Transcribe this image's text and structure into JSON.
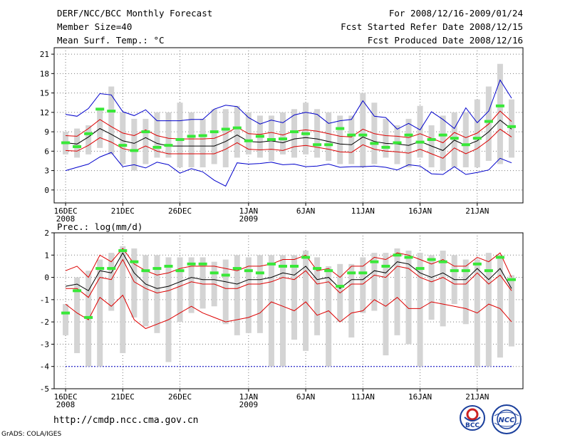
{
  "header": {
    "title": "DERF/NCC/BCC Monthly Forecast",
    "member_size": "Member Size=40",
    "forecast_range": "For 2008/12/16-2009/01/24",
    "fcst_started": "Fcst Started Refer Date 2008/12/15",
    "fcst_produced": "Fcst Produced Date 2008/12/16"
  },
  "footer": {
    "url": "http://cmdp.ncc.cma.gov.cn",
    "credit": "GrADS: COLA/IGES"
  },
  "logos": {
    "bcc": "BCC",
    "ncc": "NCC"
  },
  "colors": {
    "bar": "#d4d4d4",
    "green": "#38e838",
    "blue": "#0000cc",
    "red": "#dd0000",
    "mean": "#000000",
    "grid": "#7a7a7a"
  },
  "chart_data": [
    {
      "type": "line",
      "title": "Mean Surf. Temp.: °C",
      "x_ticks": [
        {
          "day": 1,
          "label": "16DEC",
          "sub": "2008"
        },
        {
          "day": 6,
          "label": "21DEC",
          "sub": ""
        },
        {
          "day": 11,
          "label": "26DEC",
          "sub": ""
        },
        {
          "day": 17,
          "label": "1JAN",
          "sub": "2009"
        },
        {
          "day": 22,
          "label": "6JAN",
          "sub": ""
        },
        {
          "day": 27,
          "label": "11JAN",
          "sub": ""
        },
        {
          "day": 32,
          "label": "16JAN",
          "sub": ""
        },
        {
          "day": 37,
          "label": "21JAN",
          "sub": ""
        }
      ],
      "xlim": [
        0,
        41
      ],
      "y_ticks": [
        0,
        3,
        6,
        9,
        12,
        15,
        18,
        21
      ],
      "ylim": [
        -2,
        22
      ],
      "days": [
        1,
        2,
        3,
        4,
        5,
        6,
        7,
        8,
        9,
        10,
        11,
        12,
        13,
        14,
        15,
        16,
        17,
        18,
        19,
        20,
        21,
        22,
        23,
        24,
        25,
        26,
        27,
        28,
        29,
        30,
        31,
        32,
        33,
        34,
        35,
        36,
        37,
        38,
        39,
        40
      ],
      "bar_low": [
        5.5,
        5,
        5.5,
        6.5,
        5.5,
        4,
        3,
        4,
        5,
        5,
        3.5,
        3.5,
        3.5,
        4,
        3.5,
        5,
        5.5,
        5,
        4.5,
        5.5,
        5,
        5.5,
        5,
        4.5,
        4,
        4,
        3.5,
        4,
        5,
        4,
        3.5,
        5,
        3.5,
        3,
        3.5,
        3.5,
        3.5,
        4.5,
        4,
        5
      ],
      "bar_high": [
        9,
        9.5,
        10,
        12.5,
        16,
        12,
        11,
        11,
        12,
        12,
        13.5,
        12,
        11,
        12.5,
        12.5,
        13,
        12,
        11.5,
        11.5,
        12,
        12.5,
        13.5,
        12.5,
        12,
        11.5,
        11.5,
        15,
        13.5,
        11,
        10,
        11,
        13,
        10,
        11.5,
        12,
        12,
        14,
        16,
        19.5,
        14
      ],
      "green": [
        7.3,
        6.7,
        8.7,
        12.5,
        12.2,
        6.9,
        6.1,
        9,
        6.6,
        6.9,
        7.8,
        8.3,
        8.4,
        9,
        9.4,
        9.6,
        7.6,
        8.3,
        7.8,
        7.9,
        9,
        8.7,
        7,
        7,
        9.5,
        8.5,
        8.5,
        7.2,
        6.6,
        7.3,
        8.5,
        7.4,
        7.8,
        8.5,
        8,
        7,
        8,
        10.6,
        13,
        9.8
      ],
      "mean": [
        7.3,
        7.1,
        8.2,
        9.5,
        8.6,
        7.6,
        7.2,
        8.1,
        7.2,
        6.8,
        6.8,
        6.8,
        6.8,
        6.8,
        7.5,
        8.5,
        7.5,
        7.4,
        7.6,
        7.3,
        7.9,
        8.1,
        7.9,
        7.5,
        7.1,
        7,
        8.2,
        7.5,
        7.2,
        7.1,
        6.9,
        7.5,
        6.8,
        6.1,
        7.7,
        6.9,
        7.6,
        9,
        10.8,
        9.4
      ],
      "upper": [
        8.4,
        8.3,
        9.5,
        10.9,
        9.8,
        8.8,
        8.4,
        9.3,
        8.4,
        8,
        7.9,
        7.9,
        7.9,
        8,
        8.7,
        9.7,
        8.7,
        8.6,
        8.9,
        8.5,
        9.1,
        9.3,
        9.1,
        8.7,
        8.3,
        8.2,
        9.4,
        8.7,
        8.4,
        8.3,
        8.1,
        8.7,
        8,
        7.3,
        8.9,
        8.1,
        8.8,
        10.2,
        12.2,
        10.6
      ],
      "lower": [
        6.1,
        6,
        6.9,
        8.1,
        7.4,
        6.4,
        6,
        6.8,
        6,
        5.6,
        5.6,
        5.6,
        5.6,
        5.6,
        6.3,
        7.3,
        6.3,
        6.2,
        6.3,
        6.1,
        6.7,
        6.9,
        6.6,
        6.3,
        5.9,
        5.8,
        7,
        6.3,
        6,
        5.9,
        5.7,
        6.3,
        5.6,
        4.9,
        6.5,
        5.6,
        6.4,
        7.7,
        9.4,
        8.2
      ],
      "max": [
        11.7,
        11.4,
        12.6,
        14.9,
        14.7,
        12.1,
        11.5,
        12.4,
        10.7,
        10.7,
        10.7,
        10.9,
        10.9,
        12.5,
        13.1,
        12.9,
        11.2,
        10.2,
        10.8,
        10.4,
        11.6,
        12,
        11.7,
        10.3,
        10.7,
        10.9,
        13.8,
        11.4,
        11.2,
        9.4,
        10.3,
        9.3,
        12.1,
        10.9,
        9.5,
        12.7,
        10.4,
        12.2,
        17,
        14.2
      ],
      "min": [
        3,
        3.5,
        4,
        5.1,
        5.8,
        3.6,
        3.9,
        3.4,
        4.3,
        3.9,
        2.6,
        3.3,
        2.8,
        1.5,
        0.6,
        4.2,
        4,
        4.1,
        4.3,
        3.9,
        4,
        3.6,
        3.7,
        4,
        3.5,
        3.6,
        3.6,
        3.7,
        3.5,
        3.1,
        3.9,
        3.7,
        2.5,
        2.4,
        3.6,
        2.4,
        2.7,
        3.1,
        4.9,
        4.2
      ]
    },
    {
      "type": "line",
      "title": "Prec.: log(mm/d)",
      "x_ticks": [
        {
          "day": 1,
          "label": "16DEC",
          "sub": "2008"
        },
        {
          "day": 6,
          "label": "21DEC",
          "sub": ""
        },
        {
          "day": 11,
          "label": "26DEC",
          "sub": ""
        },
        {
          "day": 17,
          "label": "1JAN",
          "sub": "2009"
        },
        {
          "day": 22,
          "label": "6JAN",
          "sub": ""
        },
        {
          "day": 27,
          "label": "11JAN",
          "sub": ""
        },
        {
          "day": 32,
          "label": "16JAN",
          "sub": ""
        },
        {
          "day": 37,
          "label": "21JAN",
          "sub": ""
        }
      ],
      "xlim": [
        0,
        41
      ],
      "y_ticks": [
        -5,
        -4,
        -3,
        -2,
        -1,
        0,
        1,
        2
      ],
      "ylim": [
        -5,
        2
      ],
      "baseline": -4,
      "days": [
        1,
        2,
        3,
        4,
        5,
        6,
        7,
        8,
        9,
        10,
        11,
        12,
        13,
        14,
        15,
        16,
        17,
        18,
        19,
        20,
        21,
        22,
        23,
        24,
        25,
        26,
        27,
        28,
        29,
        30,
        31,
        32,
        33,
        34,
        35,
        36,
        37,
        38,
        39,
        40
      ],
      "bar_low": [
        -2.6,
        -3.4,
        -4,
        -4,
        -1.5,
        -3.4,
        -1.8,
        -2.2,
        -2.5,
        -3.8,
        -2,
        -1.6,
        -1.4,
        -1.3,
        -2.1,
        -2.6,
        -2.5,
        -2.5,
        -4,
        -4,
        -2.8,
        -3.3,
        -2.6,
        -4,
        -2,
        -2.7,
        -1.6,
        -1.5,
        -3.5,
        -2.6,
        -3,
        -4,
        -1.9,
        -2.2,
        -1.2,
        -2.1,
        -4,
        -4,
        -3.6,
        -3.1
      ],
      "bar_high": [
        -1.2,
        0,
        0.3,
        0.8,
        1.1,
        1.4,
        1.3,
        1,
        1,
        0.9,
        0.9,
        0.9,
        0.9,
        0.7,
        0.8,
        1,
        0.9,
        1,
        1,
        1,
        1,
        1.2,
        0.9,
        0.5,
        0.6,
        0.6,
        0.9,
        1.1,
        1.1,
        1.3,
        1.2,
        1.1,
        1,
        1.2,
        1,
        0.8,
        0.8,
        1.1,
        1,
        0.1
      ],
      "green": [
        -1.6,
        -0.6,
        -1.8,
        0.4,
        0.4,
        1.2,
        0.7,
        0.3,
        0.4,
        0.5,
        0.3,
        0.6,
        0.6,
        0.2,
        0.1,
        0.4,
        0.3,
        0.2,
        0.6,
        0.5,
        0.5,
        0.9,
        0.4,
        0.3,
        -0.4,
        0.2,
        0.2,
        0.7,
        0.5,
        1,
        0.9,
        0.4,
        0.8,
        0.7,
        0.3,
        0.3,
        0.6,
        0.3,
        0.9,
        -0.1
      ],
      "mean": [
        -0.4,
        -0.3,
        -0.6,
        0.3,
        0.2,
        1.1,
        0.2,
        -0.3,
        -0.5,
        -0.4,
        -0.2,
        0,
        -0.1,
        -0.1,
        -0.2,
        -0.3,
        -0.1,
        -0.1,
        0,
        0.2,
        0.1,
        0.5,
        -0.1,
        0,
        -0.5,
        -0.1,
        -0.1,
        0.3,
        0.2,
        0.7,
        0.6,
        0.2,
        0,
        0.2,
        -0.1,
        -0.1,
        0.4,
        -0.1,
        0.4,
        -0.5
      ],
      "upper": [
        0.3,
        0.5,
        0,
        1,
        0.7,
        1.3,
        0.6,
        0.3,
        0.1,
        0.2,
        0.4,
        0.5,
        0.5,
        0.5,
        0.4,
        0.3,
        0.5,
        0.5,
        0.6,
        0.8,
        0.8,
        1,
        0.3,
        0.4,
        0,
        0.5,
        0.5,
        0.9,
        0.8,
        1.1,
        1,
        0.8,
        0.6,
        0.8,
        0.5,
        0.5,
        0.9,
        0.7,
        1.1,
        0
      ],
      "lower": [
        -0.5,
        -0.5,
        -0.9,
        0,
        -0.1,
        0.8,
        -0.2,
        -0.5,
        -0.7,
        -0.6,
        -0.4,
        -0.2,
        -0.3,
        -0.3,
        -0.5,
        -0.5,
        -0.3,
        -0.3,
        -0.2,
        0,
        -0.1,
        0.3,
        -0.3,
        -0.2,
        -0.7,
        -0.3,
        -0.3,
        0.1,
        0,
        0.5,
        0.4,
        0,
        -0.2,
        0,
        -0.3,
        -0.3,
        0.2,
        -0.3,
        0.1,
        -0.6
      ],
      "min": [
        -1.2,
        -1.6,
        -1.9,
        -0.9,
        -1.3,
        -0.8,
        -1.9,
        -2.3,
        -2.1,
        -1.9,
        -1.6,
        -1.3,
        -1.6,
        -1.8,
        -2,
        -1.9,
        -1.8,
        -1.6,
        -1.1,
        -1.3,
        -1.5,
        -1.1,
        -1.7,
        -1.5,
        -2,
        -1.6,
        -1.5,
        -1.0,
        -1.3,
        -0.9,
        -1.4,
        -1.4,
        -1.1,
        -1.2,
        -1.3,
        -1.4,
        -1.6,
        -1.2,
        -1.4,
        -2.0
      ]
    }
  ]
}
